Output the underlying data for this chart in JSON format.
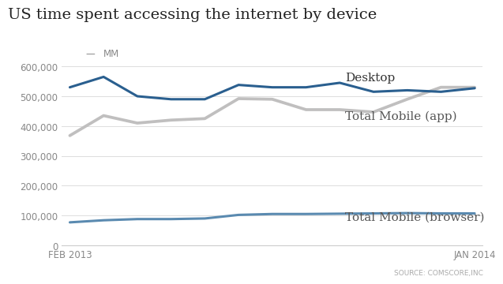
{
  "title": "US time spent accessing the internet by device",
  "ylabel_note": "MM",
  "source": "SOURCE: COMSCORE,INC",
  "x_labels": [
    "FEB 2013",
    "JAN 2014"
  ],
  "desktop": [
    530000,
    565000,
    500000,
    490000,
    490000,
    538000,
    530000,
    530000,
    545000,
    515000,
    520000,
    515000,
    527000
  ],
  "mobile_app": [
    368000,
    435000,
    410000,
    420000,
    425000,
    492000,
    490000,
    455000,
    455000,
    447000,
    490000,
    530000,
    530000
  ],
  "mobile_browser": [
    77000,
    84000,
    88000,
    88000,
    90000,
    102000,
    105000,
    105000,
    106000,
    107000,
    108000,
    107000,
    107000
  ],
  "desktop_color": "#2a5f8f",
  "mobile_app_color": "#c0bfbf",
  "mobile_browser_color": "#5a8ab0",
  "background_color": "#ffffff",
  "ylim": [
    0,
    620000
  ],
  "yticks": [
    0,
    100000,
    200000,
    300000,
    400000,
    500000,
    600000
  ],
  "ytick_labels": [
    "0",
    "100,000",
    "200,000",
    "300,000",
    "400,000",
    "500,000",
    "600,000"
  ],
  "label_desktop": "Desktop",
  "label_mobile_app": "Total Mobile (app)",
  "label_mobile_browser": "Total Mobile (browser)",
  "title_fontsize": 14,
  "tick_fontsize": 8.5,
  "annotation_fontsize": 11
}
